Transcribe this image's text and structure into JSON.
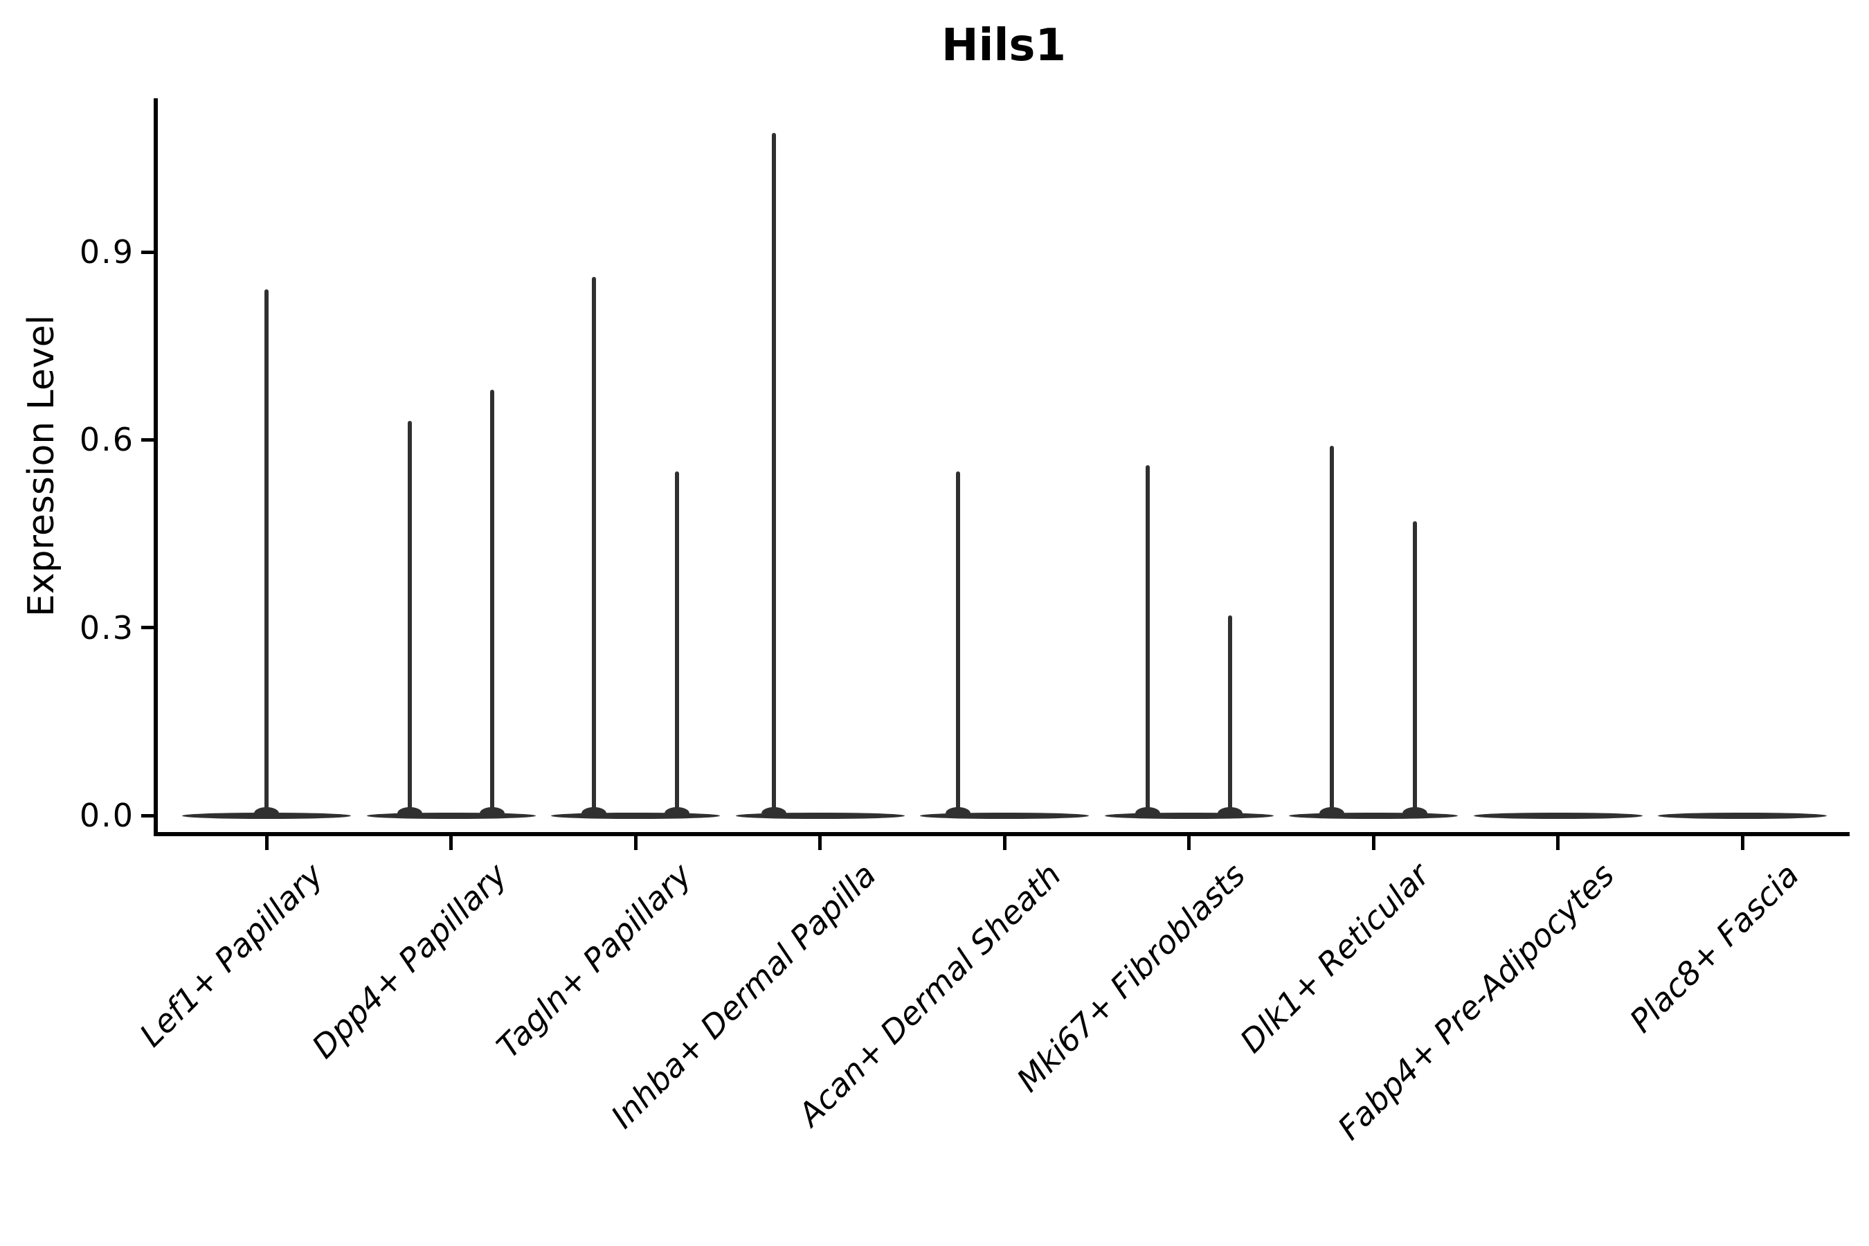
{
  "title": "Hils1",
  "chart_data": {
    "type": "violin",
    "title": "Hils1",
    "xlabel": "",
    "ylabel": "Expression Level",
    "ytick_labels": [
      "0.0",
      "0.3",
      "0.6",
      "0.9"
    ],
    "ytick_values": [
      0.0,
      0.3,
      0.6,
      0.9
    ],
    "ylim": [
      -0.03,
      1.15
    ],
    "grid": false,
    "legend": null,
    "categories": [
      "Lef1+ Papillary",
      "Dpp4+ Papillary",
      "Tagln+ Papillary",
      "Inhba+ Dermal Papilla",
      "Acan+ Dermal Sheath",
      "Mki67+ Fibroblasts",
      "Dlk1+ Reticular",
      "Fabp4+ Pre-Adipocytes",
      "Plac8+ Fascia"
    ],
    "violins": [
      {
        "category": "Lef1+ Papillary",
        "spikes": [
          {
            "offset": 0,
            "max": 0.84
          }
        ]
      },
      {
        "category": "Dpp4+ Papillary",
        "spikes": [
          {
            "offset": -0.225,
            "max": 0.63
          },
          {
            "offset": 0.225,
            "max": 0.68
          }
        ]
      },
      {
        "category": "Tagln+ Papillary",
        "spikes": [
          {
            "offset": -0.225,
            "max": 0.86
          },
          {
            "offset": 0.225,
            "max": 0.55
          }
        ]
      },
      {
        "category": "Inhba+ Dermal Papilla",
        "spikes": [
          {
            "offset": -0.25,
            "max": 1.09
          }
        ]
      },
      {
        "category": "Acan+ Dermal Sheath",
        "spikes": [
          {
            "offset": -0.25,
            "max": 0.55
          }
        ]
      },
      {
        "category": "Mki67+ Fibroblasts",
        "spikes": [
          {
            "offset": -0.225,
            "max": 0.56
          },
          {
            "offset": 0.225,
            "max": 0.32
          }
        ]
      },
      {
        "category": "Dlk1+ Reticular",
        "spikes": [
          {
            "offset": -0.225,
            "max": 0.59
          },
          {
            "offset": 0.225,
            "max": 0.47
          }
        ]
      },
      {
        "category": "Fabp4+ Pre-Adipocytes",
        "spikes": []
      },
      {
        "category": "Plac8+ Fascia",
        "spikes": []
      }
    ],
    "violin_body_width_fraction": 0.915,
    "colors": {
      "violin": "#303030",
      "axis": "#000000",
      "text": "#000000",
      "background": "#ffffff"
    }
  }
}
